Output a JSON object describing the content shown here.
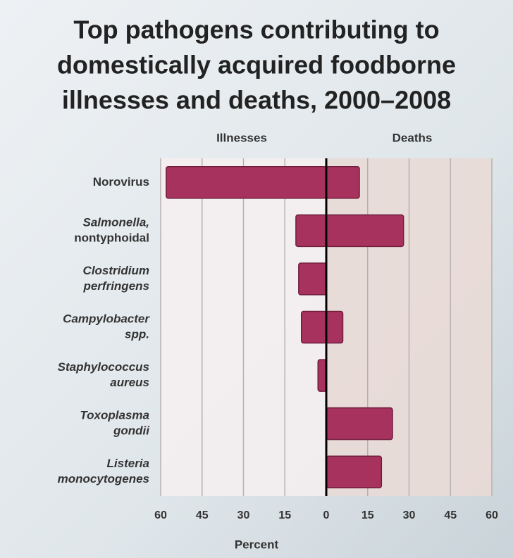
{
  "chart_data": {
    "type": "diverging-bar",
    "title": [
      "Top pathogens contributing to",
      "domestically acquired foodborne",
      "illnesses and deaths, 2000–2008"
    ],
    "categories": [
      [
        "Norovirus"
      ],
      [
        "Salmonella,",
        "nontyphoidal"
      ],
      [
        "Clostridium",
        "perfringens"
      ],
      [
        "Campylobacter",
        "spp."
      ],
      [
        "Staphylococcus",
        "aureus"
      ],
      [
        "Toxoplasma",
        "gondii"
      ],
      [
        "Listeria",
        "monocytogenes"
      ]
    ],
    "series": [
      {
        "name": "Illnesses",
        "color": "#a8325e",
        "values": [
          -58,
          -11,
          -10,
          -9,
          -3,
          0,
          0
        ]
      },
      {
        "name": "Deaths",
        "color": "#a8325e",
        "values": [
          12,
          28,
          0,
          6,
          0,
          24,
          20
        ]
      }
    ],
    "xlim": [
      -60,
      60
    ],
    "xticks": [
      {
        "value": -60,
        "label": "60"
      },
      {
        "value": -45,
        "label": "45"
      },
      {
        "value": -30,
        "label": "30"
      },
      {
        "value": -15,
        "label": "15"
      },
      0,
      15,
      30,
      45,
      60
    ],
    "xlabel": "Percent",
    "grid": true
  }
}
